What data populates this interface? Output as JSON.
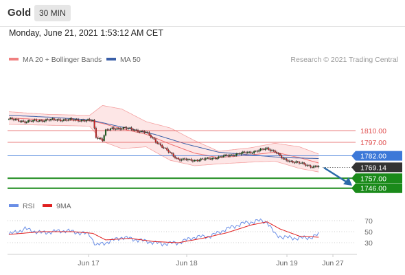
{
  "header": {
    "instrument": "Gold",
    "timeframe": "30 MIN"
  },
  "timestamp": "Monday, June 21, 2021 1:53:12 AM CET",
  "legend": {
    "bollinger_label": "MA 20 + Bollinger Bands",
    "ma50_label": "MA 50",
    "rsi_label": "RSI",
    "rsi_ma_label": "9MA"
  },
  "copyright": "Research © 2021 Trading Central",
  "colors": {
    "up": "#0a5f0a",
    "down": "#d12020",
    "candle_body": "#333333",
    "bollinger": "#f08080",
    "bollinger_fill": "#fde6e6",
    "ma50": "#3a5fa8",
    "resistance": "#e05050",
    "pivot": "#3c78d8",
    "support": "#1a8a1a",
    "rsi": "#6a8ee6",
    "rsi_ma": "#e02020"
  },
  "chart_data": [
    {
      "type": "candlestick",
      "ylim": [
        1728,
        1842
      ],
      "levels": [
        {
          "label": "1810.00",
          "value": 1810.0,
          "kind": "resistance"
        },
        {
          "label": "1797.00",
          "value": 1797.0,
          "kind": "resistance"
        },
        {
          "label": "1782.00",
          "value": 1782.0,
          "kind": "pivot"
        },
        {
          "label": "1769.14",
          "value": 1769.14,
          "kind": "last_price"
        },
        {
          "label": "1757.00",
          "value": 1757.0,
          "kind": "support"
        },
        {
          "label": "1746.00",
          "value": 1746.0,
          "kind": "support"
        }
      ],
      "x_tick_labels": [
        "Jun 17",
        "Jun 18",
        "Jun 19",
        "Jun 27"
      ],
      "price_anchors": [
        [
          0,
          1823
        ],
        [
          10,
          1820
        ],
        [
          25,
          1822
        ],
        [
          40,
          1822
        ],
        [
          52,
          1821
        ],
        [
          54,
          1803
        ],
        [
          58,
          1800
        ],
        [
          60,
          1810
        ],
        [
          64,
          1812
        ],
        [
          72,
          1813
        ],
        [
          85,
          1808
        ],
        [
          95,
          1792
        ],
        [
          105,
          1778
        ],
        [
          115,
          1777
        ],
        [
          125,
          1779
        ],
        [
          135,
          1782
        ],
        [
          145,
          1785
        ],
        [
          150,
          1786
        ],
        [
          160,
          1790
        ],
        [
          165,
          1787
        ],
        [
          170,
          1778
        ],
        [
          180,
          1774
        ],
        [
          188,
          1770
        ],
        [
          192,
          1770
        ]
      ],
      "ma50_anchors": [
        [
          0,
          1827
        ],
        [
          25,
          1825
        ],
        [
          50,
          1822
        ],
        [
          70,
          1814
        ],
        [
          90,
          1806
        ],
        [
          110,
          1795
        ],
        [
          130,
          1786
        ],
        [
          150,
          1783
        ],
        [
          170,
          1780
        ],
        [
          192,
          1779
        ]
      ],
      "bb_anchors": [
        [
          0,
          1824,
          7
        ],
        [
          25,
          1822,
          6
        ],
        [
          50,
          1821,
          6
        ],
        [
          58,
          1818,
          20
        ],
        [
          70,
          1812,
          22
        ],
        [
          85,
          1806,
          14
        ],
        [
          100,
          1795,
          18
        ],
        [
          115,
          1785,
          14
        ],
        [
          130,
          1780,
          7
        ],
        [
          150,
          1783,
          8
        ],
        [
          165,
          1786,
          10
        ],
        [
          180,
          1780,
          12
        ],
        [
          192,
          1774,
          10
        ]
      ]
    },
    {
      "type": "line",
      "title": "RSI",
      "ylim": [
        0,
        100
      ],
      "y_ticks": [
        70,
        50,
        30
      ],
      "series": [
        {
          "name": "RSI",
          "anchors": [
            [
              0,
              45
            ],
            [
              10,
              55
            ],
            [
              20,
              48
            ],
            [
              35,
              52
            ],
            [
              50,
              45
            ],
            [
              54,
              25
            ],
            [
              60,
              30
            ],
            [
              70,
              40
            ],
            [
              80,
              35
            ],
            [
              95,
              28
            ],
            [
              105,
              30
            ],
            [
              115,
              40
            ],
            [
              125,
              42
            ],
            [
              135,
              55
            ],
            [
              145,
              65
            ],
            [
              155,
              70
            ],
            [
              160,
              68
            ],
            [
              165,
              45
            ],
            [
              170,
              40
            ],
            [
              180,
              38
            ],
            [
              188,
              40
            ],
            [
              192,
              45
            ]
          ]
        },
        {
          "name": "9MA",
          "anchors": [
            [
              0,
              45
            ],
            [
              20,
              50
            ],
            [
              40,
              50
            ],
            [
              52,
              47
            ],
            [
              60,
              35
            ],
            [
              75,
              38
            ],
            [
              90,
              32
            ],
            [
              105,
              30
            ],
            [
              120,
              38
            ],
            [
              135,
              48
            ],
            [
              150,
              62
            ],
            [
              160,
              68
            ],
            [
              168,
              55
            ],
            [
              180,
              42
            ],
            [
              192,
              40
            ]
          ]
        }
      ]
    }
  ]
}
